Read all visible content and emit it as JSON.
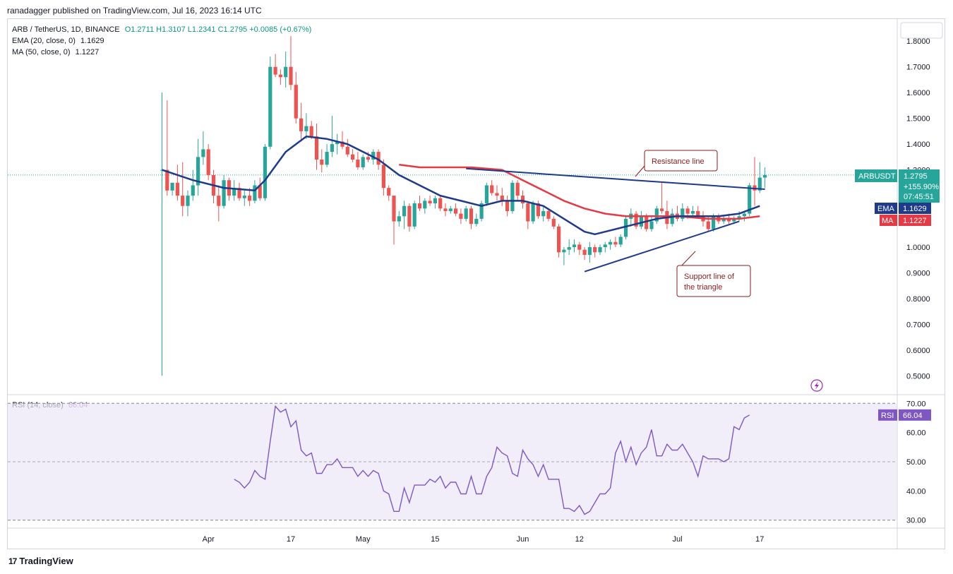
{
  "header": {
    "text": "ranadagger published on TradingView.com, Jul 16, 2023 16:14 UTC"
  },
  "legend": {
    "symbol": "ARB / TetherUS, 1D, BINANCE",
    "ohlc": "O1.2711  H1.3107  L1.2341  C1.2795  +0.0085 (+0.67%)",
    "ema": "EMA (20, close, 0)",
    "ema_value": "1.1629",
    "ma": "MA (50, close, 0)",
    "ma_value": "1.1227",
    "rsi": "RSI (14, close)",
    "rsi_value": "66.04"
  },
  "brand": {
    "logo": "17",
    "name": "TradingView"
  },
  "colors": {
    "up": "#26a69a",
    "down": "#ef5350",
    "ema": "#1e3a8a",
    "ma": "#e53945",
    "rsi": "#7e57c2",
    "rsi_band": "#ede7f6",
    "trend": "#1e3a8a",
    "annotation": "#8a1c1c"
  },
  "chart_data": {
    "type": "candlestick",
    "ylim": [
      0.46,
      1.85
    ],
    "yticks": [
      0.5,
      0.6,
      0.7,
      0.8,
      0.9,
      1.0,
      1.1,
      1.2,
      1.3,
      1.4,
      1.5,
      1.6,
      1.7,
      1.8
    ],
    "ytick_labels": [
      "0.5000",
      "0.6000",
      "0.7000",
      "0.8000",
      "0.9000",
      "1.0000",
      "1.1000",
      "1.2000",
      "1.3000",
      "1.4000",
      "1.5000",
      "1.6000",
      "1.7000",
      "1.8000"
    ],
    "x_ticks": [
      {
        "label": "Apr",
        "day": 9
      },
      {
        "label": "17",
        "day": 25
      },
      {
        "label": "May",
        "day": 39
      },
      {
        "label": "15",
        "day": 53
      },
      {
        "label": "Jun",
        "day": 70
      },
      {
        "label": "12",
        "day": 81
      },
      {
        "label": "Jul",
        "day": 100
      },
      {
        "label": "17",
        "day": 116
      }
    ],
    "candles": [
      [
        1.3,
        1.6,
        0.5,
        1.3
      ],
      [
        1.3,
        1.57,
        1.2,
        1.22
      ],
      [
        1.22,
        1.25,
        1.2,
        1.25
      ],
      [
        1.25,
        1.32,
        1.18,
        1.2
      ],
      [
        1.2,
        1.33,
        1.12,
        1.16
      ],
      [
        1.16,
        1.22,
        1.12,
        1.2
      ],
      [
        1.2,
        1.3,
        1.18,
        1.24
      ],
      [
        1.24,
        1.42,
        1.2,
        1.35
      ],
      [
        1.35,
        1.45,
        1.32,
        1.38
      ],
      [
        1.38,
        1.4,
        1.26,
        1.28
      ],
      [
        1.28,
        1.3,
        1.17,
        1.2
      ],
      [
        1.2,
        1.24,
        1.1,
        1.16
      ],
      [
        1.16,
        1.28,
        1.15,
        1.26
      ],
      [
        1.26,
        1.27,
        1.18,
        1.2
      ],
      [
        1.2,
        1.26,
        1.18,
        1.23
      ],
      [
        1.23,
        1.25,
        1.18,
        1.19
      ],
      [
        1.19,
        1.22,
        1.16,
        1.2
      ],
      [
        1.2,
        1.23,
        1.16,
        1.18
      ],
      [
        1.18,
        1.26,
        1.17,
        1.24
      ],
      [
        1.24,
        1.27,
        1.18,
        1.19
      ],
      [
        1.19,
        1.4,
        1.18,
        1.39
      ],
      [
        1.39,
        1.74,
        1.38,
        1.7
      ],
      [
        1.7,
        1.75,
        1.66,
        1.67
      ],
      [
        1.67,
        1.69,
        1.63,
        1.66
      ],
      [
        1.66,
        1.76,
        1.62,
        1.7
      ],
      [
        1.7,
        1.82,
        1.61,
        1.63
      ],
      [
        1.63,
        1.68,
        1.48,
        1.5
      ],
      [
        1.5,
        1.56,
        1.41,
        1.45
      ],
      [
        1.45,
        1.52,
        1.42,
        1.47
      ],
      [
        1.47,
        1.49,
        1.42,
        1.43
      ],
      [
        1.43,
        1.48,
        1.3,
        1.34
      ],
      [
        1.34,
        1.38,
        1.29,
        1.32
      ],
      [
        1.32,
        1.4,
        1.31,
        1.37
      ],
      [
        1.37,
        1.51,
        1.35,
        1.4
      ],
      [
        1.4,
        1.44,
        1.36,
        1.41
      ],
      [
        1.41,
        1.45,
        1.38,
        1.39
      ],
      [
        1.39,
        1.42,
        1.35,
        1.36
      ],
      [
        1.36,
        1.38,
        1.33,
        1.34
      ],
      [
        1.34,
        1.37,
        1.3,
        1.31
      ],
      [
        1.31,
        1.36,
        1.3,
        1.35
      ],
      [
        1.35,
        1.37,
        1.33,
        1.34
      ],
      [
        1.34,
        1.38,
        1.32,
        1.37
      ],
      [
        1.37,
        1.38,
        1.3,
        1.32
      ],
      [
        1.32,
        1.34,
        1.2,
        1.23
      ],
      [
        1.23,
        1.24,
        1.18,
        1.2
      ],
      [
        1.2,
        1.2,
        1.01,
        1.1
      ],
      [
        1.1,
        1.14,
        1.08,
        1.12
      ],
      [
        1.12,
        1.18,
        1.07,
        1.16
      ],
      [
        1.16,
        1.17,
        1.06,
        1.08
      ],
      [
        1.08,
        1.18,
        1.07,
        1.17
      ],
      [
        1.17,
        1.2,
        1.14,
        1.15
      ],
      [
        1.15,
        1.19,
        1.13,
        1.18
      ],
      [
        1.18,
        1.2,
        1.16,
        1.17
      ],
      [
        1.17,
        1.2,
        1.15,
        1.19
      ],
      [
        1.19,
        1.2,
        1.14,
        1.15
      ],
      [
        1.15,
        1.17,
        1.12,
        1.14
      ],
      [
        1.14,
        1.16,
        1.13,
        1.15
      ],
      [
        1.15,
        1.17,
        1.12,
        1.13
      ],
      [
        1.13,
        1.15,
        1.09,
        1.11
      ],
      [
        1.11,
        1.16,
        1.1,
        1.15
      ],
      [
        1.15,
        1.16,
        1.07,
        1.09
      ],
      [
        1.09,
        1.13,
        1.08,
        1.11
      ],
      [
        1.11,
        1.18,
        1.1,
        1.17
      ],
      [
        1.17,
        1.25,
        1.16,
        1.24
      ],
      [
        1.24,
        1.26,
        1.2,
        1.21
      ],
      [
        1.21,
        1.24,
        1.18,
        1.2
      ],
      [
        1.2,
        1.23,
        1.16,
        1.18
      ],
      [
        1.18,
        1.2,
        1.12,
        1.14
      ],
      [
        1.14,
        1.26,
        1.13,
        1.25
      ],
      [
        1.25,
        1.26,
        1.18,
        1.2
      ],
      [
        1.2,
        1.22,
        1.15,
        1.17
      ],
      [
        1.17,
        1.18,
        1.07,
        1.1
      ],
      [
        1.1,
        1.18,
        1.09,
        1.17
      ],
      [
        1.17,
        1.18,
        1.11,
        1.12
      ],
      [
        1.12,
        1.16,
        1.1,
        1.14
      ],
      [
        1.14,
        1.15,
        1.1,
        1.11
      ],
      [
        1.11,
        1.12,
        1.07,
        1.08
      ],
      [
        1.08,
        1.09,
        0.96,
        0.98
      ],
      [
        0.98,
        1.0,
        0.93,
        0.99
      ],
      [
        0.99,
        1.03,
        0.97,
        1.0
      ],
      [
        1.0,
        1.03,
        0.98,
        1.01
      ],
      [
        1.01,
        1.02,
        0.97,
        0.99
      ],
      [
        0.99,
        1.0,
        0.95,
        0.97
      ],
      [
        0.97,
        1.02,
        0.94,
        1.0
      ],
      [
        1.0,
        1.01,
        0.96,
        0.98
      ],
      [
        0.98,
        1.01,
        0.97,
        1.0
      ],
      [
        1.0,
        1.02,
        0.98,
        1.01
      ],
      [
        1.01,
        1.03,
        0.99,
        1.02
      ],
      [
        1.02,
        1.04,
        1.0,
        1.01
      ],
      [
        1.01,
        1.05,
        1.0,
        1.04
      ],
      [
        1.04,
        1.12,
        1.03,
        1.11
      ],
      [
        1.11,
        1.15,
        1.08,
        1.13
      ],
      [
        1.13,
        1.14,
        1.07,
        1.08
      ],
      [
        1.08,
        1.14,
        1.07,
        1.12
      ],
      [
        1.12,
        1.13,
        1.06,
        1.07
      ],
      [
        1.07,
        1.12,
        1.06,
        1.1
      ],
      [
        1.1,
        1.16,
        1.09,
        1.15
      ],
      [
        1.15,
        1.25,
        1.13,
        1.14
      ],
      [
        1.14,
        1.18,
        1.07,
        1.09
      ],
      [
        1.09,
        1.15,
        1.08,
        1.13
      ],
      [
        1.13,
        1.16,
        1.1,
        1.11
      ],
      [
        1.11,
        1.17,
        1.1,
        1.15
      ],
      [
        1.15,
        1.16,
        1.11,
        1.13
      ],
      [
        1.13,
        1.16,
        1.12,
        1.14
      ],
      [
        1.14,
        1.16,
        1.11,
        1.12
      ],
      [
        1.12,
        1.14,
        1.08,
        1.1
      ],
      [
        1.1,
        1.12,
        1.06,
        1.07
      ],
      [
        1.07,
        1.13,
        1.06,
        1.12
      ],
      [
        1.12,
        1.13,
        1.09,
        1.1
      ],
      [
        1.1,
        1.12,
        1.09,
        1.11
      ],
      [
        1.11,
        1.13,
        1.09,
        1.1
      ],
      [
        1.1,
        1.12,
        1.09,
        1.11
      ],
      [
        1.11,
        1.14,
        1.1,
        1.12
      ],
      [
        1.12,
        1.14,
        1.1,
        1.13
      ],
      [
        1.13,
        1.25,
        1.12,
        1.24
      ],
      [
        1.24,
        1.35,
        1.16,
        1.22
      ],
      [
        1.22,
        1.33,
        1.21,
        1.27
      ],
      [
        1.27,
        1.31,
        1.23,
        1.28
      ]
    ],
    "ema": [
      [
        0,
        1.3
      ],
      [
        6,
        1.26
      ],
      [
        12,
        1.23
      ],
      [
        18,
        1.22
      ],
      [
        20,
        1.26
      ],
      [
        24,
        1.37
      ],
      [
        28,
        1.43
      ],
      [
        32,
        1.42
      ],
      [
        36,
        1.4
      ],
      [
        42,
        1.34
      ],
      [
        46,
        1.28
      ],
      [
        50,
        1.24
      ],
      [
        54,
        1.2
      ],
      [
        58,
        1.18
      ],
      [
        62,
        1.16
      ],
      [
        66,
        1.18
      ],
      [
        70,
        1.18
      ],
      [
        74,
        1.16
      ],
      [
        78,
        1.11
      ],
      [
        82,
        1.06
      ],
      [
        84,
        1.05
      ],
      [
        86,
        1.06
      ],
      [
        90,
        1.08
      ],
      [
        96,
        1.11
      ],
      [
        100,
        1.12
      ],
      [
        104,
        1.12
      ],
      [
        108,
        1.12
      ],
      [
        112,
        1.13
      ],
      [
        116,
        1.16
      ]
    ],
    "ma": [
      [
        46,
        1.32
      ],
      [
        50,
        1.31
      ],
      [
        54,
        1.31
      ],
      [
        60,
        1.31
      ],
      [
        66,
        1.3
      ],
      [
        70,
        1.26
      ],
      [
        74,
        1.22
      ],
      [
        78,
        1.18
      ],
      [
        82,
        1.15
      ],
      [
        86,
        1.13
      ],
      [
        90,
        1.12
      ],
      [
        96,
        1.12
      ],
      [
        100,
        1.12
      ],
      [
        106,
        1.11
      ],
      [
        112,
        1.11
      ],
      [
        116,
        1.12
      ]
    ],
    "resistance_line": [
      [
        59,
        1.305
      ],
      [
        117,
        1.225
      ]
    ],
    "support_line": [
      [
        82,
        0.905
      ],
      [
        112,
        1.1
      ]
    ],
    "annotations": {
      "resistance": "Resistance line",
      "support_line1": "Support line of",
      "support_line2": "the triangle"
    },
    "price_badge": {
      "symbol": "ARBUSDT",
      "price": "1.2795",
      "change": "+155.90%",
      "countdown": "07:45:51"
    },
    "ema_badge": {
      "label": "EMA",
      "value": "1.1629"
    },
    "ma_badge": {
      "label": "MA",
      "value": "1.1227"
    },
    "rsi": {
      "ylim": [
        28,
        72
      ],
      "yticks": [
        30,
        40,
        50,
        60,
        70
      ],
      "ytick_labels": [
        "30.00",
        "40.00",
        "50.00",
        "60.00",
        "70.00"
      ],
      "band": [
        30,
        70
      ],
      "badge": {
        "label": "RSI",
        "value": "66.04"
      },
      "start_day": 14,
      "values": [
        44,
        43,
        41,
        43,
        47,
        45,
        44,
        57,
        69,
        67,
        68,
        62,
        64,
        54,
        52,
        53,
        46,
        46,
        49,
        49,
        51,
        48,
        48,
        48,
        45,
        47,
        45,
        47,
        46,
        40,
        39,
        33,
        33,
        41,
        36,
        42,
        42,
        42,
        44,
        43,
        45,
        41,
        43,
        43,
        39,
        39,
        45,
        39,
        39,
        45,
        48,
        55,
        53,
        52,
        46,
        45,
        54,
        51,
        49,
        45,
        49,
        44,
        44,
        44,
        34,
        34,
        33,
        35,
        32,
        33,
        36,
        39,
        39,
        41,
        53,
        57,
        50,
        55,
        49,
        53,
        55,
        61,
        52,
        52,
        56,
        54,
        54,
        56,
        53,
        50,
        45,
        52,
        51,
        51,
        51,
        50,
        51,
        62,
        61,
        65,
        66
      ]
    }
  }
}
